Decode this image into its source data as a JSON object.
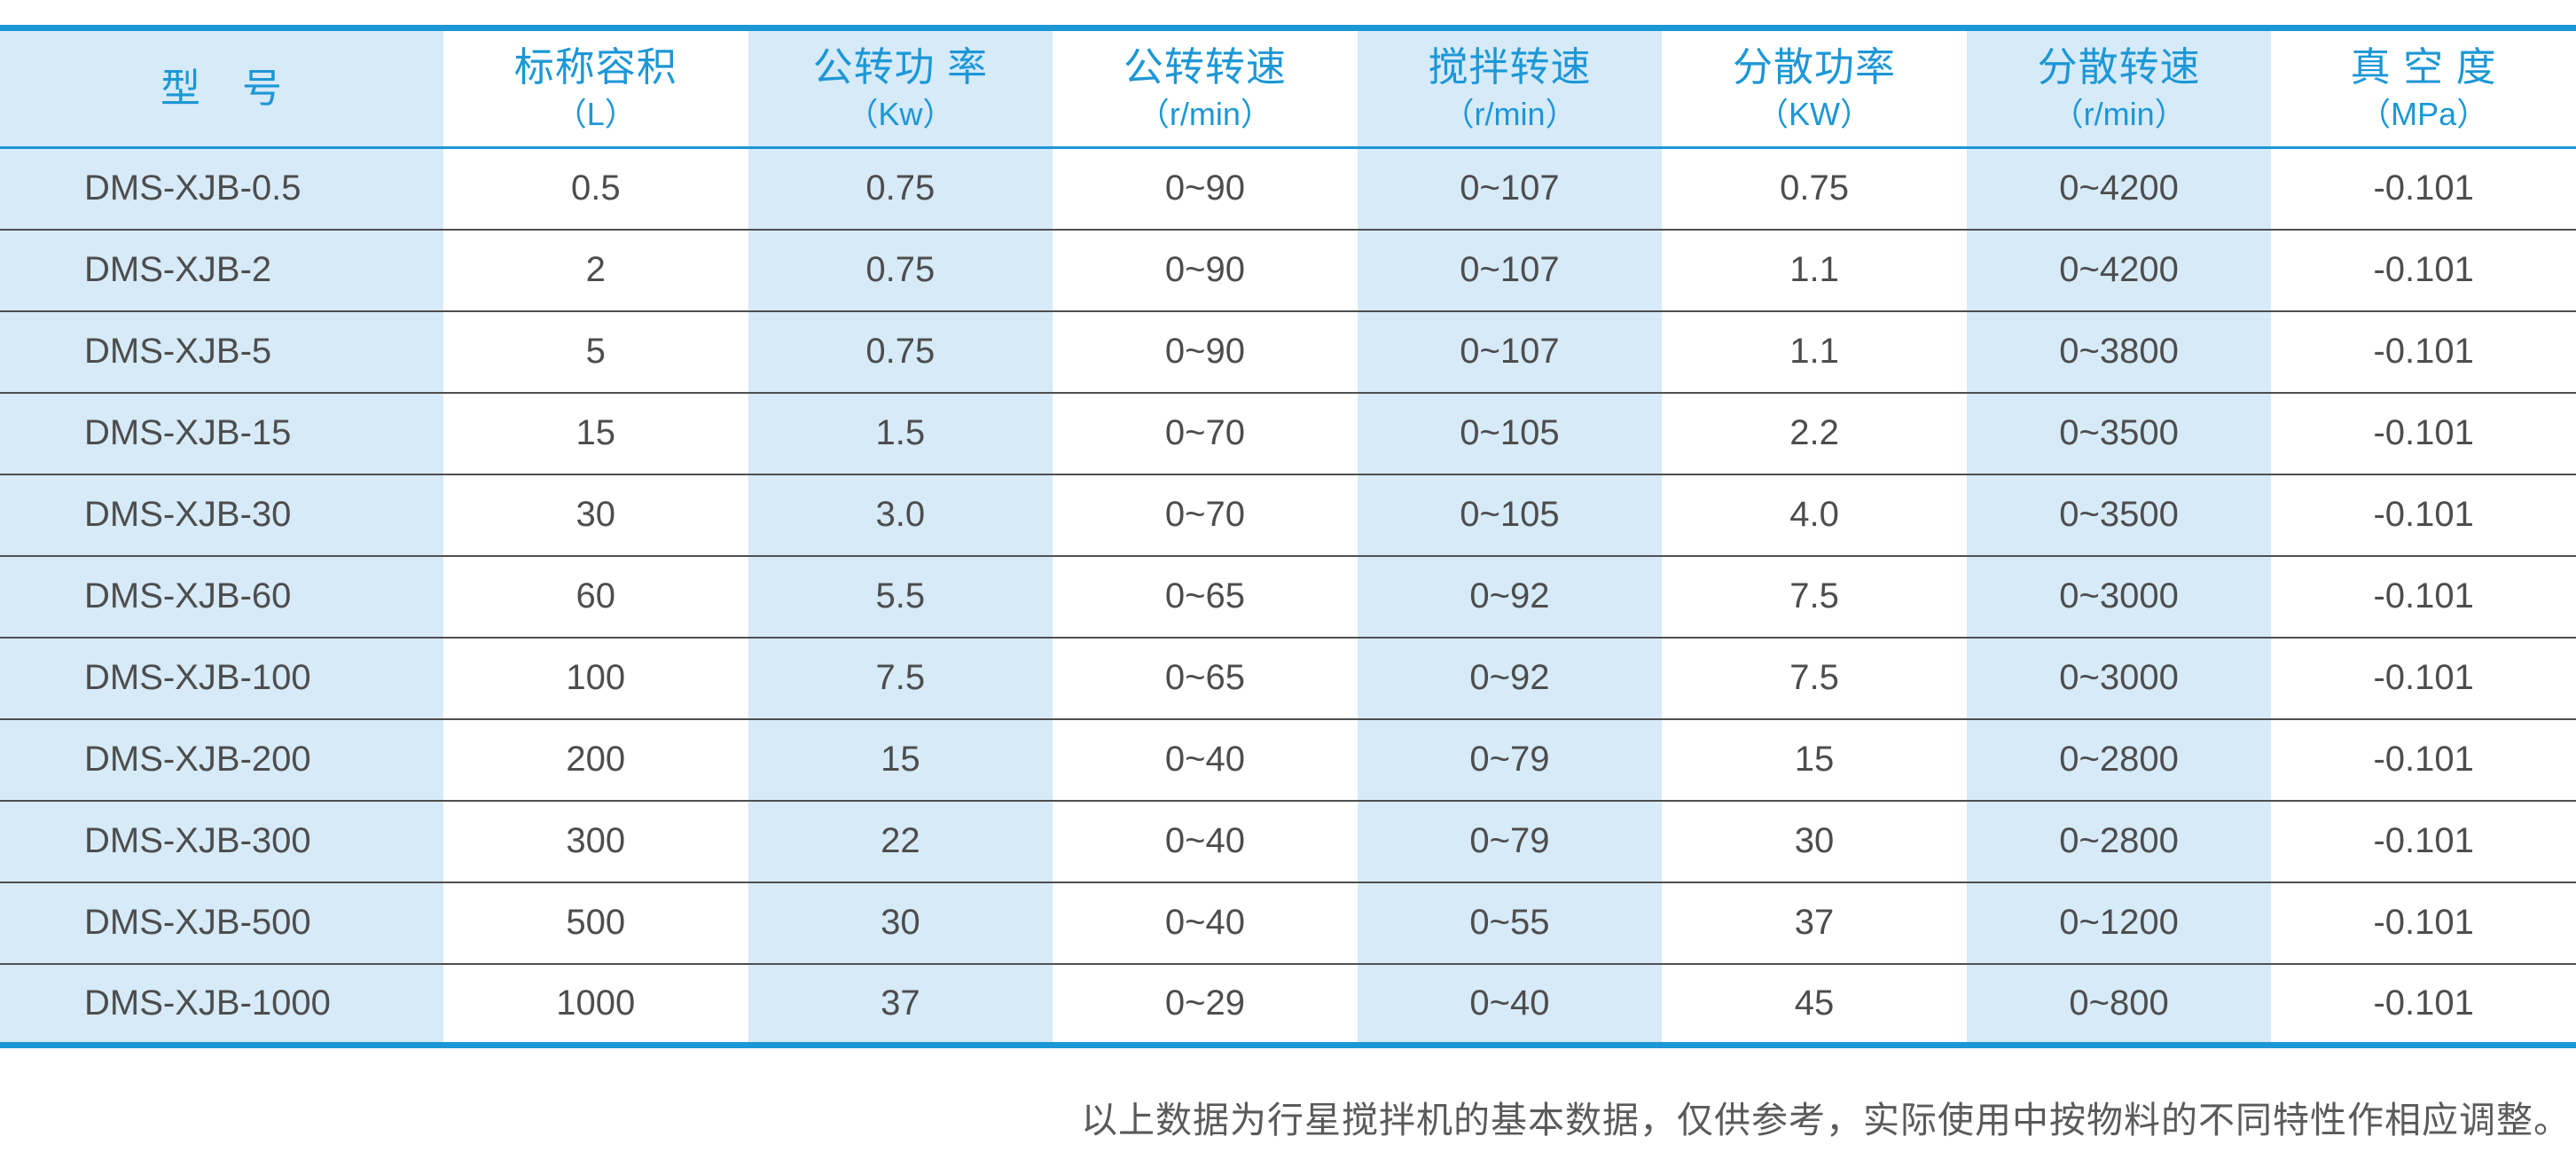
{
  "table": {
    "columns": [
      {
        "key": "model",
        "label": "型　号",
        "unit": ""
      },
      {
        "key": "nominal-capacity",
        "label": "标称容积",
        "unit": "（L）"
      },
      {
        "key": "revolution-power",
        "label": "公转功 率",
        "unit": "（Kw）"
      },
      {
        "key": "revolution-speed",
        "label": "公转转速",
        "unit": "（r/min）"
      },
      {
        "key": "stirring-speed",
        "label": "搅拌转速",
        "unit": "（r/min）"
      },
      {
        "key": "dispersing-power",
        "label": "分散功率",
        "unit": "（KW）"
      },
      {
        "key": "dispersing-speed",
        "label": "分散转速",
        "unit": "（r/min）"
      },
      {
        "key": "vacuum-degree",
        "label": "真 空 度",
        "unit": "（MPa）"
      }
    ],
    "rows": [
      [
        "DMS-XJB-0.5",
        "0.5",
        "0.75",
        "0~90",
        "0~107",
        "0.75",
        "0~4200",
        "-0.101"
      ],
      [
        "DMS-XJB-2",
        "2",
        "0.75",
        "0~90",
        "0~107",
        "1.1",
        "0~4200",
        "-0.101"
      ],
      [
        "DMS-XJB-5",
        "5",
        "0.75",
        "0~90",
        "0~107",
        "1.1",
        "0~3800",
        "-0.101"
      ],
      [
        "DMS-XJB-15",
        "15",
        "1.5",
        "0~70",
        "0~105",
        "2.2",
        "0~3500",
        "-0.101"
      ],
      [
        "DMS-XJB-30",
        "30",
        "3.0",
        "0~70",
        "0~105",
        "4.0",
        "0~3500",
        "-0.101"
      ],
      [
        "DMS-XJB-60",
        "60",
        "5.5",
        "0~65",
        "0~92",
        "7.5",
        "0~3000",
        "-0.101"
      ],
      [
        "DMS-XJB-100",
        "100",
        "7.5",
        "0~65",
        "0~92",
        "7.5",
        "0~3000",
        "-0.101"
      ],
      [
        "DMS-XJB-200",
        "200",
        "15",
        "0~40",
        "0~79",
        "15",
        "0~2800",
        "-0.101"
      ],
      [
        "DMS-XJB-300",
        "300",
        "22",
        "0~40",
        "0~79",
        "30",
        "0~2800",
        "-0.101"
      ],
      [
        "DMS-XJB-500",
        "500",
        "30",
        "0~40",
        "0~55",
        "37",
        "0~1200",
        "-0.101"
      ],
      [
        "DMS-XJB-1000",
        "1000",
        "37",
        "0~29",
        "0~40",
        "45",
        "0~800",
        "-0.101"
      ]
    ]
  },
  "footer": {
    "note": "以上数据为行星搅拌机的基本数据，仅供参考，实际使用中按物料的不同特性作相应调整。"
  },
  "colors": {
    "accent_blue": "#1c97d6",
    "shaded_column_blue": "#d6eaf8",
    "row_separator": "#4f4f4f",
    "cell_text": "#4d4d4d",
    "footer_text": "#5a5a5a"
  }
}
